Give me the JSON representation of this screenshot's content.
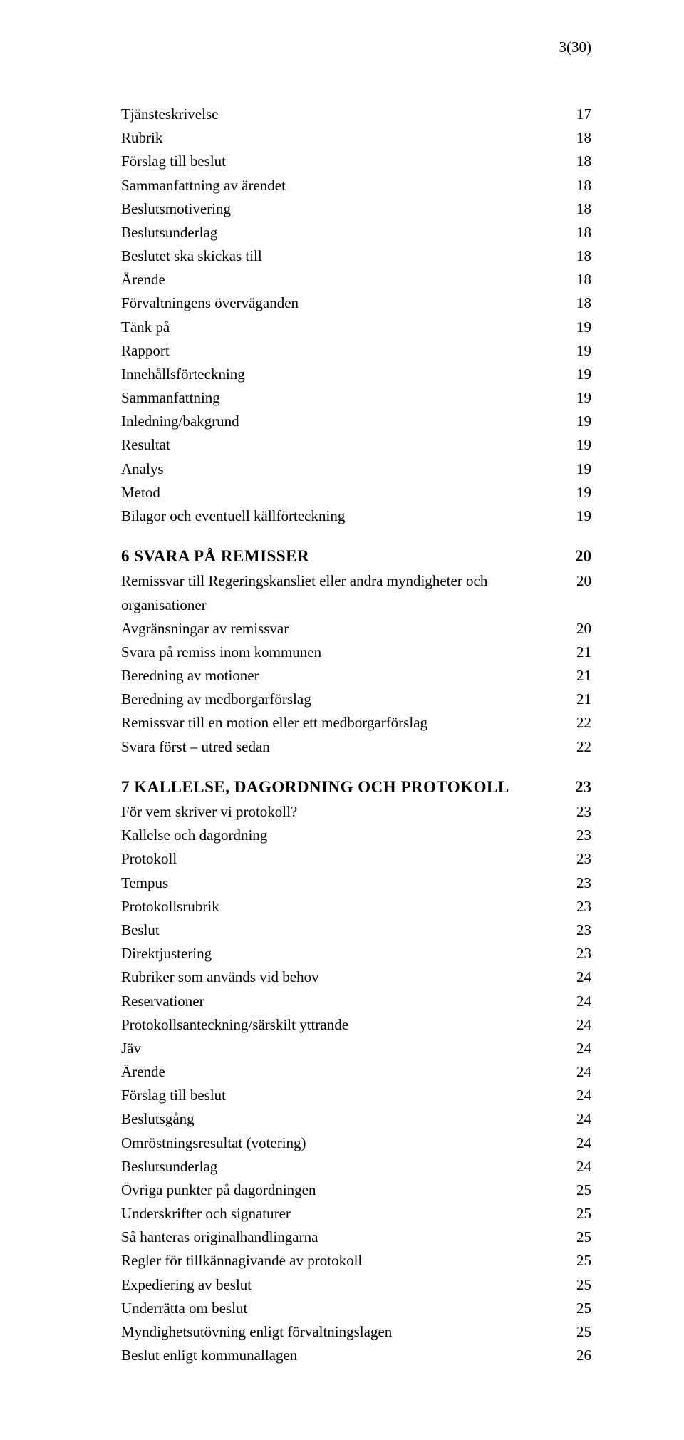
{
  "pageNumber": "3(30)",
  "groups": [
    {
      "items": [
        {
          "label": "Tjänsteskrivelse",
          "page": "17"
        },
        {
          "label": "Rubrik",
          "page": "18"
        },
        {
          "label": "Förslag till beslut",
          "page": "18"
        },
        {
          "label": "Sammanfattning av ärendet",
          "page": "18"
        },
        {
          "label": "Beslutsmotivering",
          "page": "18"
        },
        {
          "label": "Beslutsunderlag",
          "page": "18"
        },
        {
          "label": "Beslutet ska skickas till",
          "page": "18"
        },
        {
          "label": "Ärende",
          "page": "18"
        },
        {
          "label": "Förvaltningens överväganden",
          "page": "18"
        },
        {
          "label": "Tänk på",
          "page": "19"
        },
        {
          "label": "Rapport",
          "page": "19"
        },
        {
          "label": "Innehållsförteckning",
          "page": "19"
        },
        {
          "label": "Sammanfattning",
          "page": "19"
        },
        {
          "label": "Inledning/bakgrund",
          "page": "19"
        },
        {
          "label": "Resultat",
          "page": "19"
        },
        {
          "label": "Analys",
          "page": "19"
        },
        {
          "label": "Metod",
          "page": "19"
        },
        {
          "label": "Bilagor och eventuell källförteckning",
          "page": "19"
        }
      ]
    },
    {
      "heading": {
        "label": "6 SVARA PÅ REMISSER",
        "page": "20"
      },
      "items": [
        {
          "label": "Remissvar till Regeringskansliet eller andra myndigheter och organisationer",
          "page": "20"
        },
        {
          "label": "Avgränsningar av remissvar",
          "page": "20"
        },
        {
          "label": "Svara på remiss inom kommunen",
          "page": "21"
        },
        {
          "label": "Beredning av motioner",
          "page": "21"
        },
        {
          "label": "Beredning av medborgarförslag",
          "page": "21"
        },
        {
          "label": "Remissvar till en motion eller ett medborgarförslag",
          "page": "22"
        },
        {
          "label": "Svara först – utred sedan",
          "page": "22"
        }
      ]
    },
    {
      "heading": {
        "label": "7 KALLELSE, DAGORDNING OCH PROTOKOLL",
        "page": "23"
      },
      "items": [
        {
          "label": "För vem skriver vi protokoll?",
          "page": "23"
        },
        {
          "label": "Kallelse och dagordning",
          "page": "23"
        },
        {
          "label": "Protokoll",
          "page": "23"
        },
        {
          "label": "Tempus",
          "page": "23"
        },
        {
          "label": "Protokollsrubrik",
          "page": "23"
        },
        {
          "label": "Beslut",
          "page": "23"
        },
        {
          "label": "Direktjustering",
          "page": "23"
        },
        {
          "label": "Rubriker som används vid behov",
          "page": "24"
        },
        {
          "label": "Reservationer",
          "page": "24"
        },
        {
          "label": "Protokollsanteckning/särskilt yttrande",
          "page": "24"
        },
        {
          "label": "Jäv",
          "page": "24"
        },
        {
          "label": "Ärende",
          "page": "24"
        },
        {
          "label": "Förslag till beslut",
          "page": "24"
        },
        {
          "label": "Beslutsgång",
          "page": "24"
        },
        {
          "label": "Omröstningsresultat (votering)",
          "page": "24"
        },
        {
          "label": "Beslutsunderlag",
          "page": "24"
        },
        {
          "label": "Övriga punkter på dagordningen",
          "page": "25"
        },
        {
          "label": "Underskrifter och signaturer",
          "page": "25"
        },
        {
          "label": "Så hanteras originalhandlingarna",
          "page": "25"
        },
        {
          "label": "Regler för tillkännagivande av protokoll",
          "page": "25"
        },
        {
          "label": "Expediering av beslut",
          "page": "25"
        },
        {
          "label": "Underrätta om beslut",
          "page": "25"
        },
        {
          "label": "Myndighetsutövning enligt förvaltningslagen",
          "page": "25"
        },
        {
          "label": "Beslut enligt kommunallagen",
          "page": "26"
        }
      ]
    }
  ]
}
